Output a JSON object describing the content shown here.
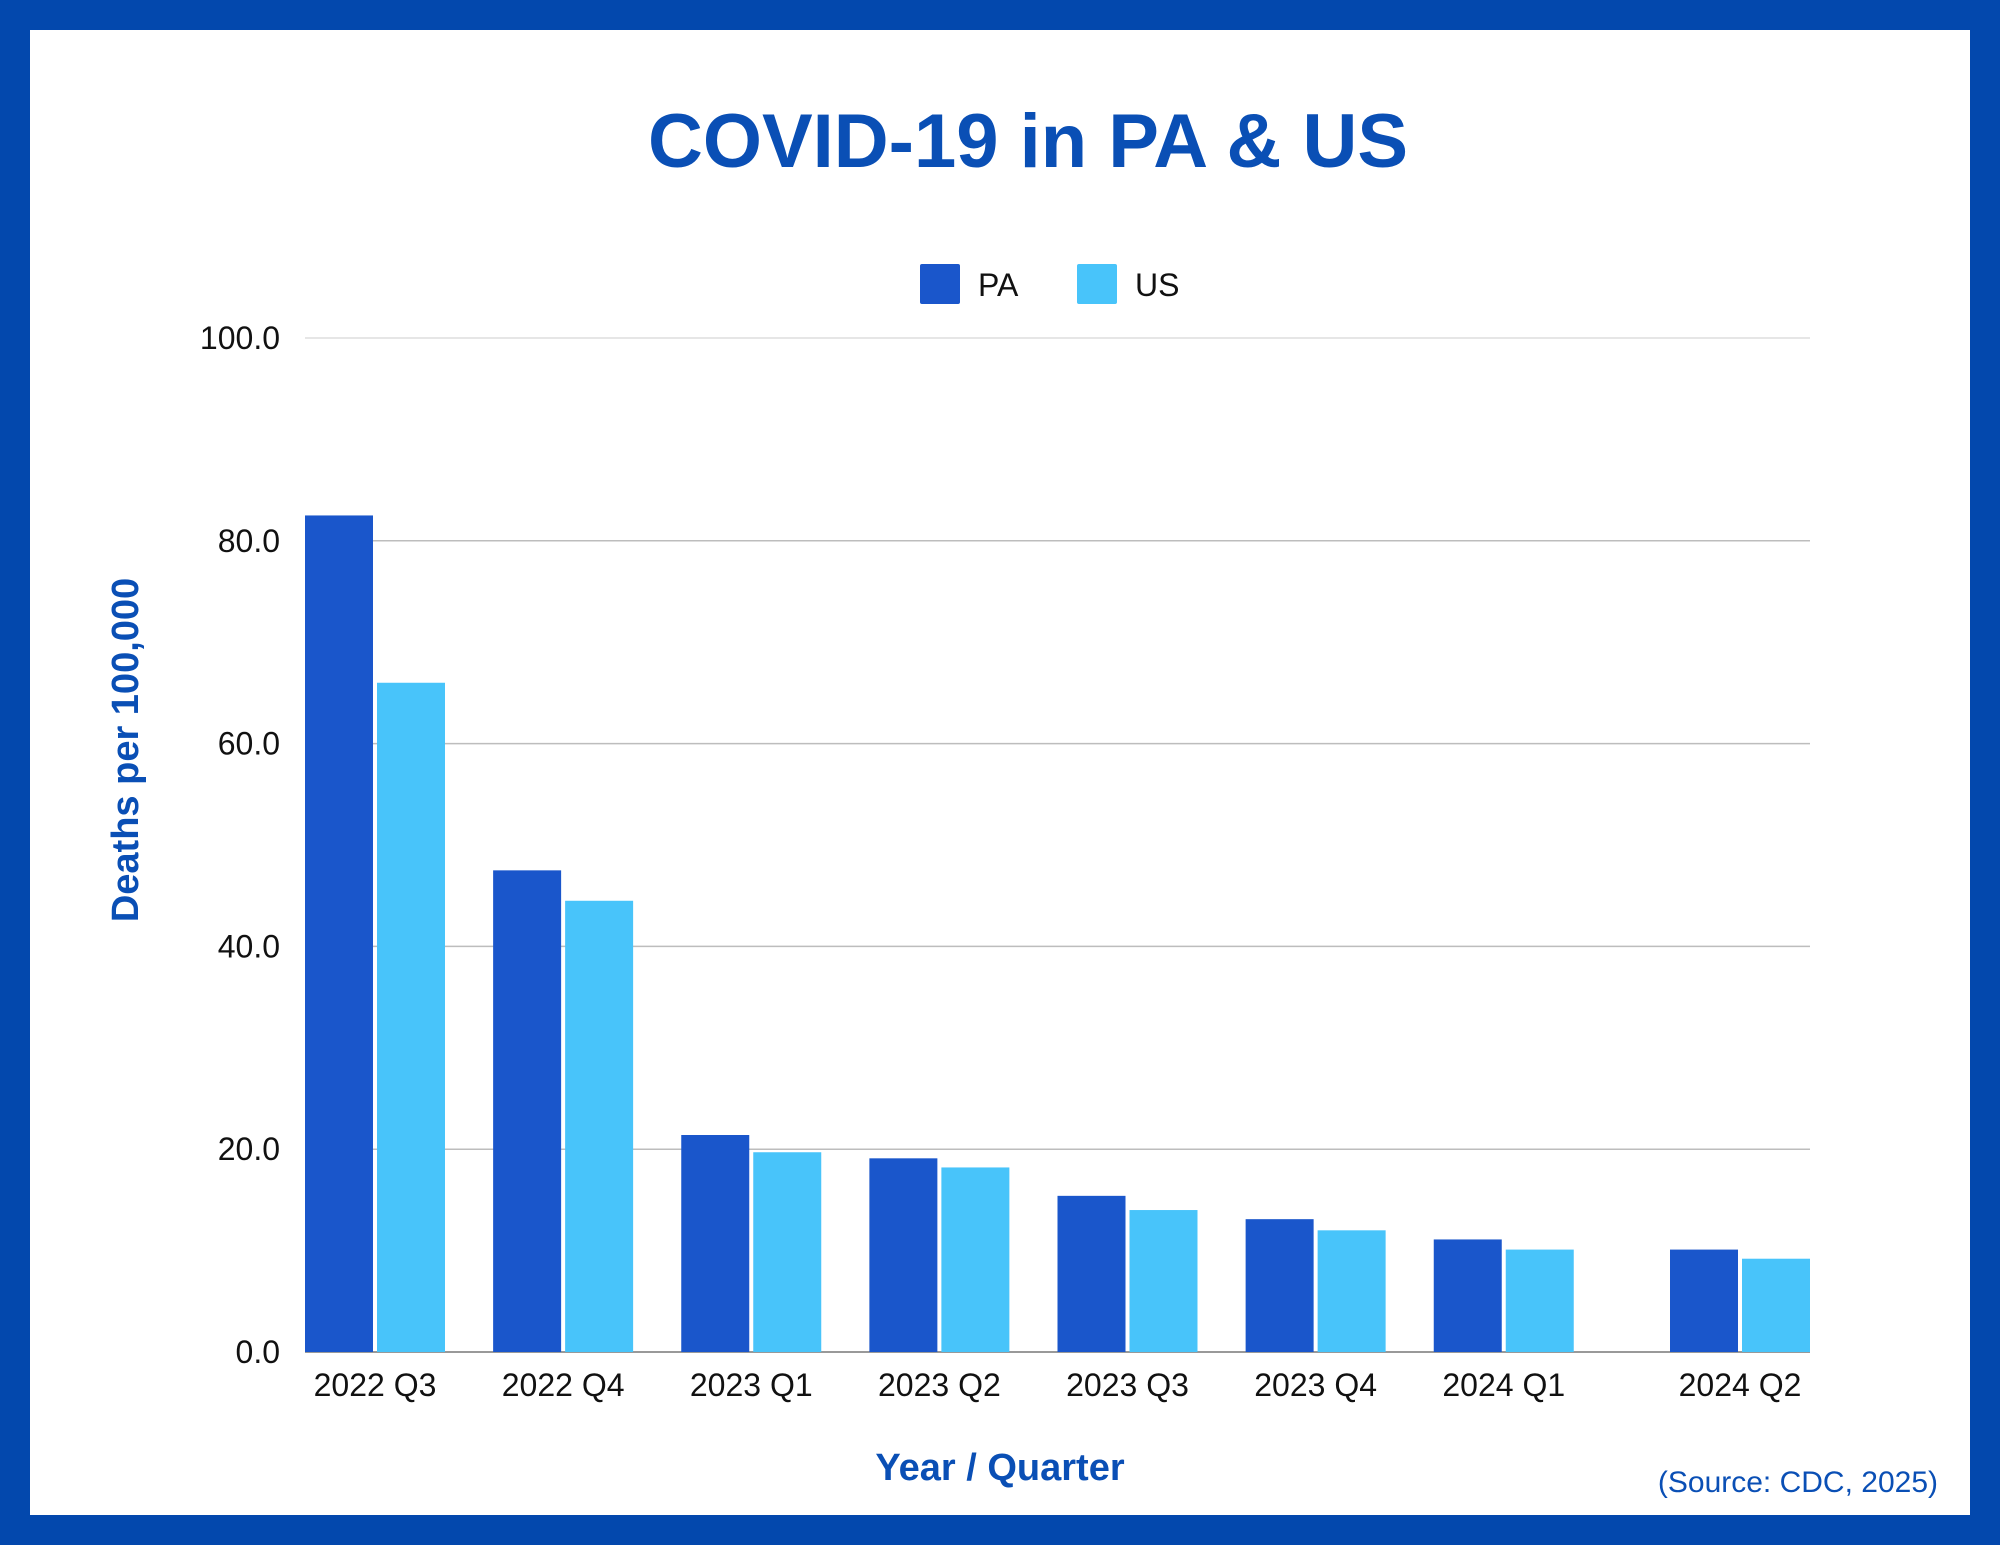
{
  "chart_data": {
    "type": "bar",
    "title": "COVID-19 in PA & US",
    "xlabel": "Year / Quarter",
    "ylabel": "Deaths per 100,000",
    "ylim": [
      0,
      100
    ],
    "yticks": [
      "0.0",
      "20.0",
      "40.0",
      "60.0",
      "80.0",
      "100.0"
    ],
    "categories": [
      "2022 Q3",
      "2022 Q4",
      "2023 Q1",
      "2023 Q2",
      "2023 Q3",
      "2023 Q4",
      "2024 Q1",
      "2024 Q2"
    ],
    "series": [
      {
        "name": "PA",
        "color": "#1A56CB",
        "values": [
          82.5,
          47.5,
          21.4,
          19.1,
          15.4,
          13.1,
          11.1,
          10.1
        ]
      },
      {
        "name": "US",
        "color": "#48C4FA",
        "values": [
          66.0,
          44.5,
          19.7,
          18.2,
          14.0,
          12.0,
          10.1,
          9.2
        ]
      }
    ],
    "grid": true,
    "legend_position": "top-center",
    "source": "(Source: CDC, 2025)"
  },
  "colors": {
    "border": "#0348AD",
    "title": "#0A4FB5",
    "gridline": "#bdbdbd"
  }
}
